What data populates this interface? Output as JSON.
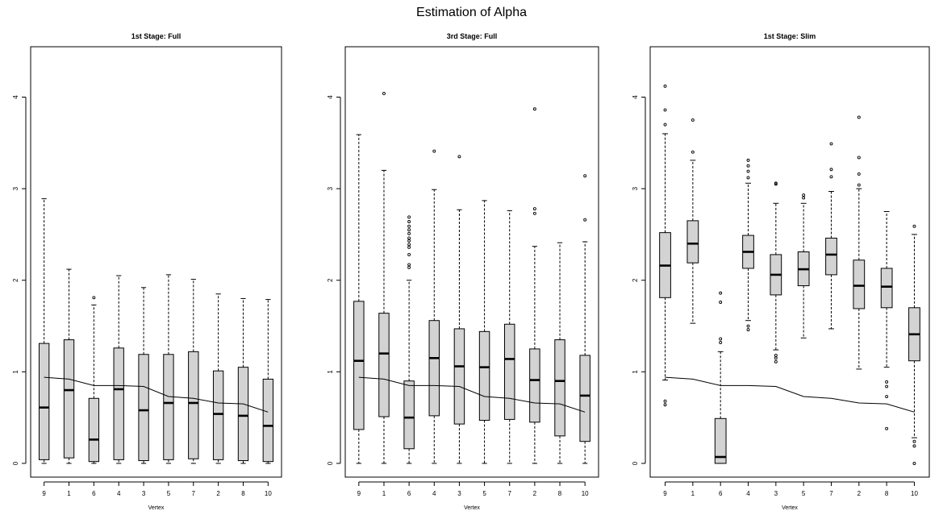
{
  "title": "Estimation of Alpha",
  "colors": {
    "box_fill": "#d3d3d3",
    "stroke": "#000000"
  },
  "chart_data": [
    {
      "type": "box",
      "title": "1st Stage: Full",
      "xlabel": "Vertex",
      "ylabel": "",
      "ylim": [
        -0.15,
        4.55
      ],
      "yticks": [
        0,
        1,
        2,
        3,
        4
      ],
      "categories": [
        "9",
        "1",
        "6",
        "4",
        "3",
        "5",
        "7",
        "2",
        "8",
        "10"
      ],
      "boxes": [
        {
          "whisker_low": 0,
          "q1": 0.04,
          "median": 0.61,
          "q3": 1.31,
          "whisker_high": 2.89,
          "outliers": []
        },
        {
          "whisker_low": 0,
          "q1": 0.06,
          "median": 0.8,
          "q3": 1.35,
          "whisker_high": 2.12,
          "outliers": []
        },
        {
          "whisker_low": 0,
          "q1": 0.02,
          "median": 0.26,
          "q3": 0.71,
          "whisker_high": 1.73,
          "outliers": [
            1.81
          ]
        },
        {
          "whisker_low": 0,
          "q1": 0.04,
          "median": 0.81,
          "q3": 1.26,
          "whisker_high": 2.05,
          "outliers": []
        },
        {
          "whisker_low": 0,
          "q1": 0.03,
          "median": 0.58,
          "q3": 1.19,
          "whisker_high": 1.92,
          "outliers": []
        },
        {
          "whisker_low": 0,
          "q1": 0.04,
          "median": 0.66,
          "q3": 1.19,
          "whisker_high": 2.06,
          "outliers": []
        },
        {
          "whisker_low": 0,
          "q1": 0.05,
          "median": 0.66,
          "q3": 1.22,
          "whisker_high": 2.01,
          "outliers": []
        },
        {
          "whisker_low": 0,
          "q1": 0.04,
          "median": 0.54,
          "q3": 1.01,
          "whisker_high": 1.85,
          "outliers": []
        },
        {
          "whisker_low": 0,
          "q1": 0.03,
          "median": 0.52,
          "q3": 1.05,
          "whisker_high": 1.8,
          "outliers": []
        },
        {
          "whisker_low": 0,
          "q1": 0.02,
          "median": 0.41,
          "q3": 0.92,
          "whisker_high": 1.79,
          "outliers": []
        }
      ],
      "line": [
        0.94,
        0.92,
        0.85,
        0.85,
        0.84,
        0.73,
        0.71,
        0.66,
        0.65,
        0.56
      ]
    },
    {
      "type": "box",
      "title": "3rd Stage: Full",
      "xlabel": "Vertex",
      "ylabel": "",
      "ylim": [
        -0.15,
        4.55
      ],
      "yticks": [
        0,
        1,
        2,
        3,
        4
      ],
      "categories": [
        "9",
        "1",
        "6",
        "4",
        "3",
        "5",
        "7",
        "2",
        "8",
        "10"
      ],
      "boxes": [
        {
          "whisker_low": 0,
          "q1": 0.37,
          "median": 1.12,
          "q3": 1.77,
          "whisker_high": 3.59,
          "outliers": []
        },
        {
          "whisker_low": 0,
          "q1": 0.51,
          "median": 1.2,
          "q3": 1.64,
          "whisker_high": 3.2,
          "outliers": [
            4.04
          ]
        },
        {
          "whisker_low": 0,
          "q1": 0.16,
          "median": 0.5,
          "q3": 0.9,
          "whisker_high": 2.0,
          "outliers": [
            2.14,
            2.17,
            2.28,
            2.36,
            2.39,
            2.43,
            2.46,
            2.51,
            2.55,
            2.59,
            2.64,
            2.69
          ]
        },
        {
          "whisker_low": 0,
          "q1": 0.52,
          "median": 1.15,
          "q3": 1.56,
          "whisker_high": 2.99,
          "outliers": [
            3.41
          ]
        },
        {
          "whisker_low": 0,
          "q1": 0.43,
          "median": 1.06,
          "q3": 1.47,
          "whisker_high": 2.77,
          "outliers": [
            3.35
          ]
        },
        {
          "whisker_low": 0,
          "q1": 0.47,
          "median": 1.05,
          "q3": 1.44,
          "whisker_high": 2.87,
          "outliers": []
        },
        {
          "whisker_low": 0,
          "q1": 0.48,
          "median": 1.14,
          "q3": 1.52,
          "whisker_high": 2.76,
          "outliers": []
        },
        {
          "whisker_low": 0,
          "q1": 0.45,
          "median": 0.91,
          "q3": 1.25,
          "whisker_high": 2.37,
          "outliers": [
            2.73,
            2.78,
            3.87
          ]
        },
        {
          "whisker_low": 0,
          "q1": 0.3,
          "median": 0.9,
          "q3": 1.35,
          "whisker_high": 2.41,
          "outliers": []
        },
        {
          "whisker_low": 0,
          "q1": 0.24,
          "median": 0.74,
          "q3": 1.18,
          "whisker_high": 2.42,
          "outliers": [
            2.66,
            3.14
          ]
        }
      ],
      "line": [
        0.94,
        0.92,
        0.85,
        0.85,
        0.84,
        0.73,
        0.71,
        0.66,
        0.65,
        0.56
      ]
    },
    {
      "type": "box",
      "title": "1st Stage: Slim",
      "xlabel": "Vertex",
      "ylabel": "",
      "ylim": [
        -0.15,
        4.55
      ],
      "yticks": [
        0,
        1,
        2,
        3,
        4
      ],
      "categories": [
        "9",
        "1",
        "6",
        "4",
        "3",
        "5",
        "7",
        "2",
        "8",
        "10"
      ],
      "boxes": [
        {
          "whisker_low": 0.91,
          "q1": 1.81,
          "median": 2.16,
          "q3": 2.52,
          "whisker_high": 3.6,
          "outliers": [
            0.64,
            0.68,
            3.7,
            3.86,
            4.12
          ]
        },
        {
          "whisker_low": 1.53,
          "q1": 2.19,
          "median": 2.4,
          "q3": 2.65,
          "whisker_high": 3.31,
          "outliers": [
            3.4,
            3.75
          ]
        },
        {
          "whisker_low": 0,
          "q1": 0.0,
          "median": 0.07,
          "q3": 0.49,
          "whisker_high": 1.22,
          "outliers": [
            1.32,
            1.36,
            1.76,
            1.86
          ]
        },
        {
          "whisker_low": 1.56,
          "q1": 2.13,
          "median": 2.31,
          "q3": 2.49,
          "whisker_high": 3.06,
          "outliers": [
            1.46,
            1.5,
            3.12,
            3.19,
            3.25,
            3.31
          ]
        },
        {
          "whisker_low": 1.24,
          "q1": 1.84,
          "median": 2.06,
          "q3": 2.28,
          "whisker_high": 2.84,
          "outliers": [
            1.11,
            1.15,
            1.18,
            3.05,
            3.06
          ]
        },
        {
          "whisker_low": 1.37,
          "q1": 1.94,
          "median": 2.12,
          "q3": 2.31,
          "whisker_high": 2.84,
          "outliers": [
            2.9,
            2.93
          ]
        },
        {
          "whisker_low": 1.47,
          "q1": 2.06,
          "median": 2.28,
          "q3": 2.46,
          "whisker_high": 2.97,
          "outliers": [
            3.13,
            3.21,
            3.49
          ]
        },
        {
          "whisker_low": 1.03,
          "q1": 1.69,
          "median": 1.94,
          "q3": 2.22,
          "whisker_high": 3.0,
          "outliers": [
            3.04,
            3.16,
            3.34,
            3.78
          ]
        },
        {
          "whisker_low": 1.05,
          "q1": 1.7,
          "median": 1.93,
          "q3": 2.13,
          "whisker_high": 2.75,
          "outliers": [
            0.38,
            0.73,
            0.84,
            0.89
          ]
        },
        {
          "whisker_low": 0.28,
          "q1": 1.12,
          "median": 1.41,
          "q3": 1.7,
          "whisker_high": 2.5,
          "outliers": [
            0.0,
            0.19,
            0.24,
            2.59
          ]
        }
      ],
      "line": [
        0.94,
        0.92,
        0.85,
        0.85,
        0.84,
        0.73,
        0.71,
        0.66,
        0.65,
        0.56
      ]
    }
  ]
}
